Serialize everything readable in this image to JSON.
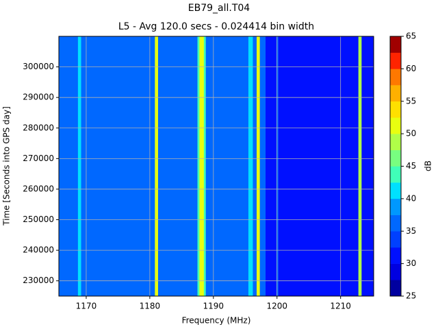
{
  "chart_data": {
    "type": "heatmap",
    "title": "EB79_all.T04",
    "subtitle": "L5 - Avg 120.0 secs - 0.024414 bin width",
    "x_label": "Frequency (MHz)",
    "y_label": "Time [Seconds into GPS day]",
    "x_edges": [
      1165.7,
      1168.7,
      1169.2,
      1180.8,
      1181.3,
      1187.5,
      1187.8,
      1188.5,
      1188.8,
      1195.5,
      1196.2,
      1196.8,
      1197.3,
      1198.2,
      1199.9,
      1200.2,
      1212.8,
      1213.3,
      1215.2
    ],
    "values": [
      36,
      41,
      36,
      50,
      36,
      43,
      50,
      43,
      36,
      40,
      36,
      50,
      36,
      32,
      37,
      32,
      48,
      32
    ],
    "xlim": [
      1165.7,
      1215.2
    ],
    "xticks": [
      1170,
      1180,
      1190,
      1200,
      1210
    ],
    "ylim": [
      225000,
      310000
    ],
    "yticks": [
      230000,
      240000,
      250000,
      260000,
      270000,
      280000,
      290000,
      300000
    ],
    "grid": true,
    "colorbar": {
      "label": "dB",
      "levels": [
        25,
        27.5,
        30,
        32.5,
        35,
        37.5,
        40,
        42.5,
        45,
        47.5,
        50,
        52.5,
        55,
        57.5,
        60,
        62.5,
        65
      ],
      "colors": [
        "#00009f",
        "#0000e0",
        "#0010ff",
        "#0040ff",
        "#0068ff",
        "#0098ff",
        "#00e0ff",
        "#40ffb8",
        "#78ff80",
        "#b0ff48",
        "#e8ff10",
        "#ffe000",
        "#ffb000",
        "#ff7800",
        "#ff2400",
        "#a00000"
      ],
      "ticks": [
        25,
        30,
        35,
        40,
        45,
        50,
        55,
        60,
        65
      ]
    }
  }
}
